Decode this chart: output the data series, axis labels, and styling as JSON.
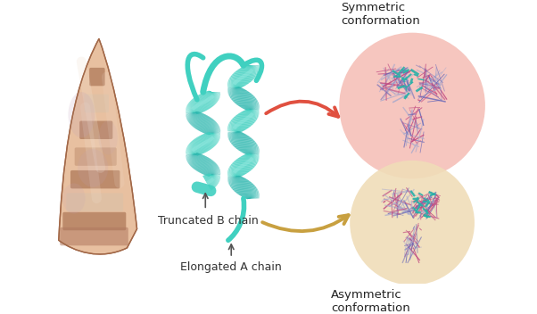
{
  "fig_width": 6.02,
  "fig_height": 3.52,
  "bg_color": "#ffffff",
  "symmetric_label": "Symmetric\nconformation",
  "asymmetric_label": "Asymmetric\nconformation",
  "truncated_label": "Truncated B chain",
  "elongated_label": "Elongated A chain",
  "sym_circle_color": "#f5c0b8",
  "asym_circle_color": "#f0ddb8",
  "red_arrow_color": "#e05040",
  "gold_arrow_color": "#c8a040",
  "insulin_color": "#40d0c0",
  "c_blue": "#6868b8",
  "c_pink": "#c04880",
  "c_teal": "#28b0a8",
  "c_gray": "#aaaacc",
  "label_fontsize": 9,
  "label_color": "#333333",
  "shell_base": "#c89070",
  "shell_mid": "#b07858",
  "shell_light": "#e8c0a0",
  "shell_stripe_dark": "#9a6040",
  "shell_stripe_light": "#d8c0a8"
}
